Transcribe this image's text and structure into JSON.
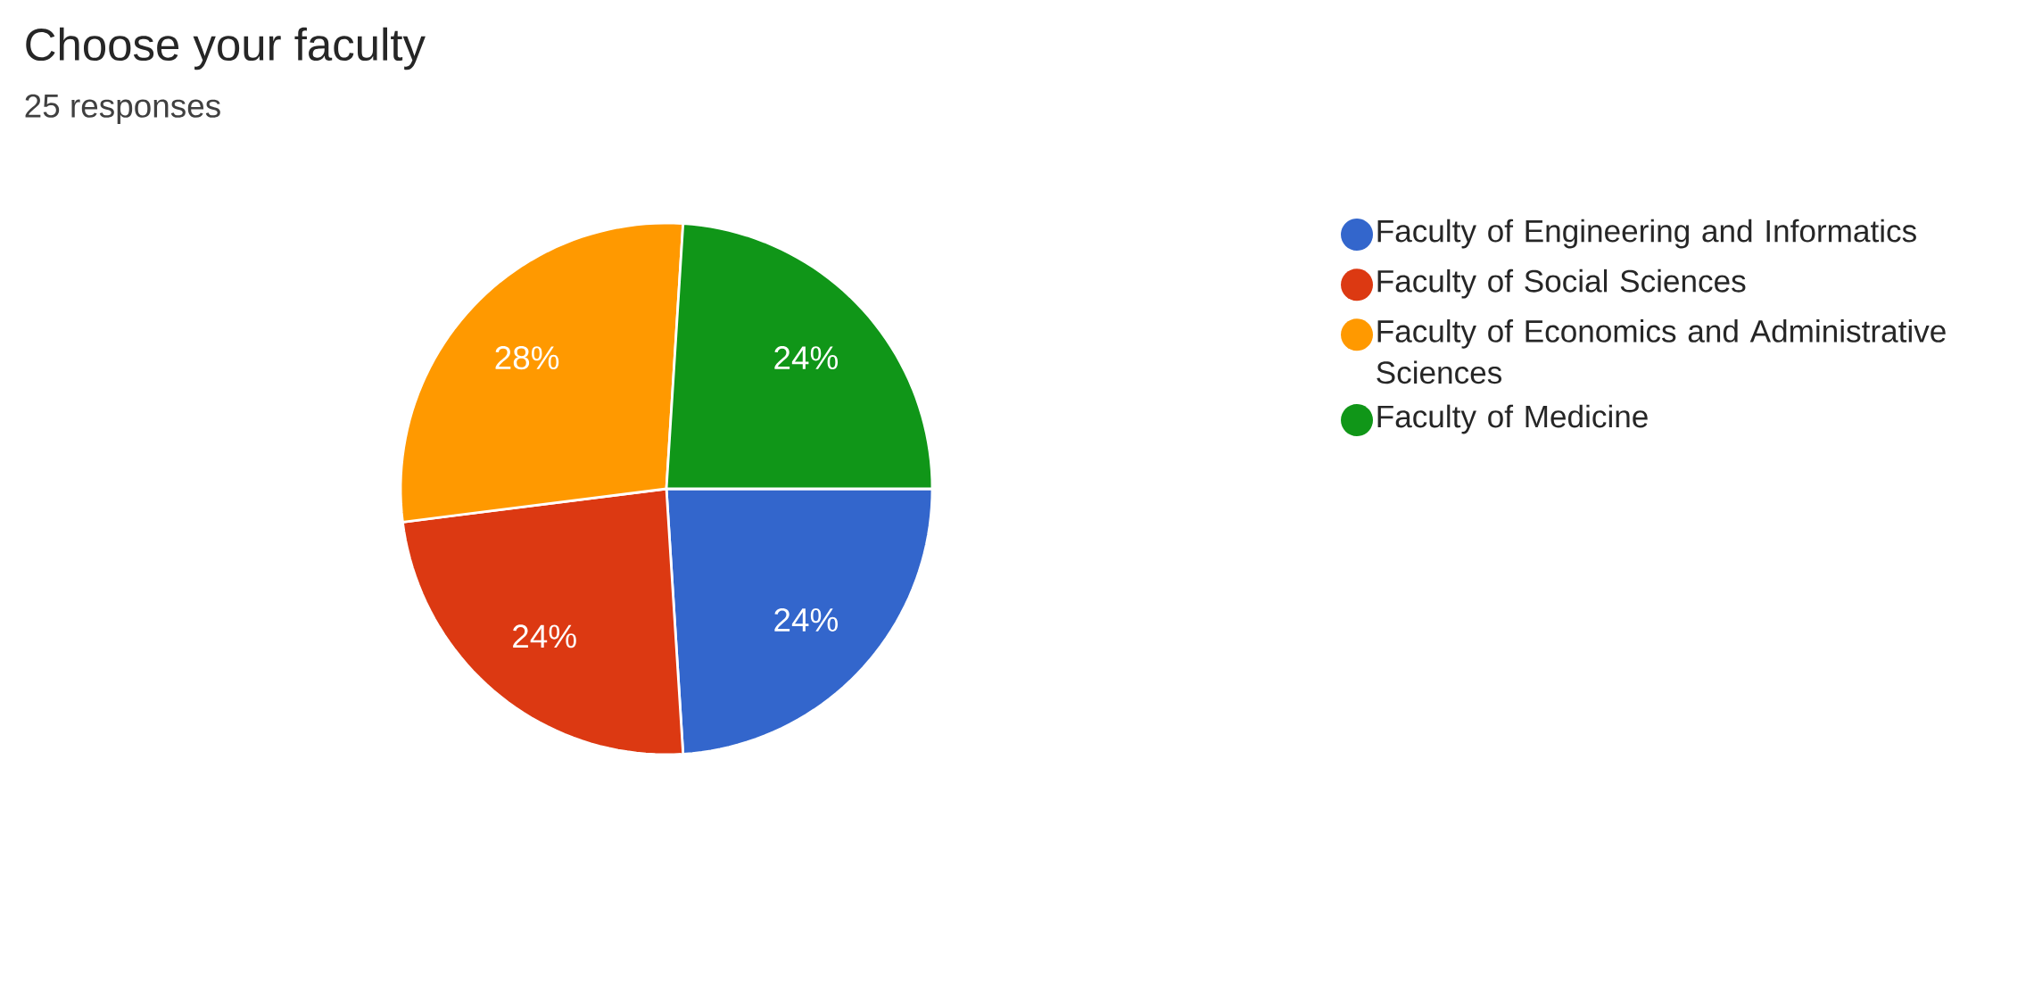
{
  "chart_data": {
    "type": "pie",
    "title": "Choose your faculty",
    "subtitle": "25 responses",
    "categories": [
      "Faculty of Engineering and Informatics",
      "Faculty of Social Sciences",
      "Faculty of Economics and Administrative Sciences",
      "Faculty of Medicine"
    ],
    "values": [
      24,
      24,
      28,
      24
    ],
    "colors": [
      "#3366cc",
      "#dc3912",
      "#ff9900",
      "#109618"
    ],
    "value_labels": [
      "24%",
      "24%",
      "28%",
      "24%"
    ],
    "legend": "right"
  }
}
